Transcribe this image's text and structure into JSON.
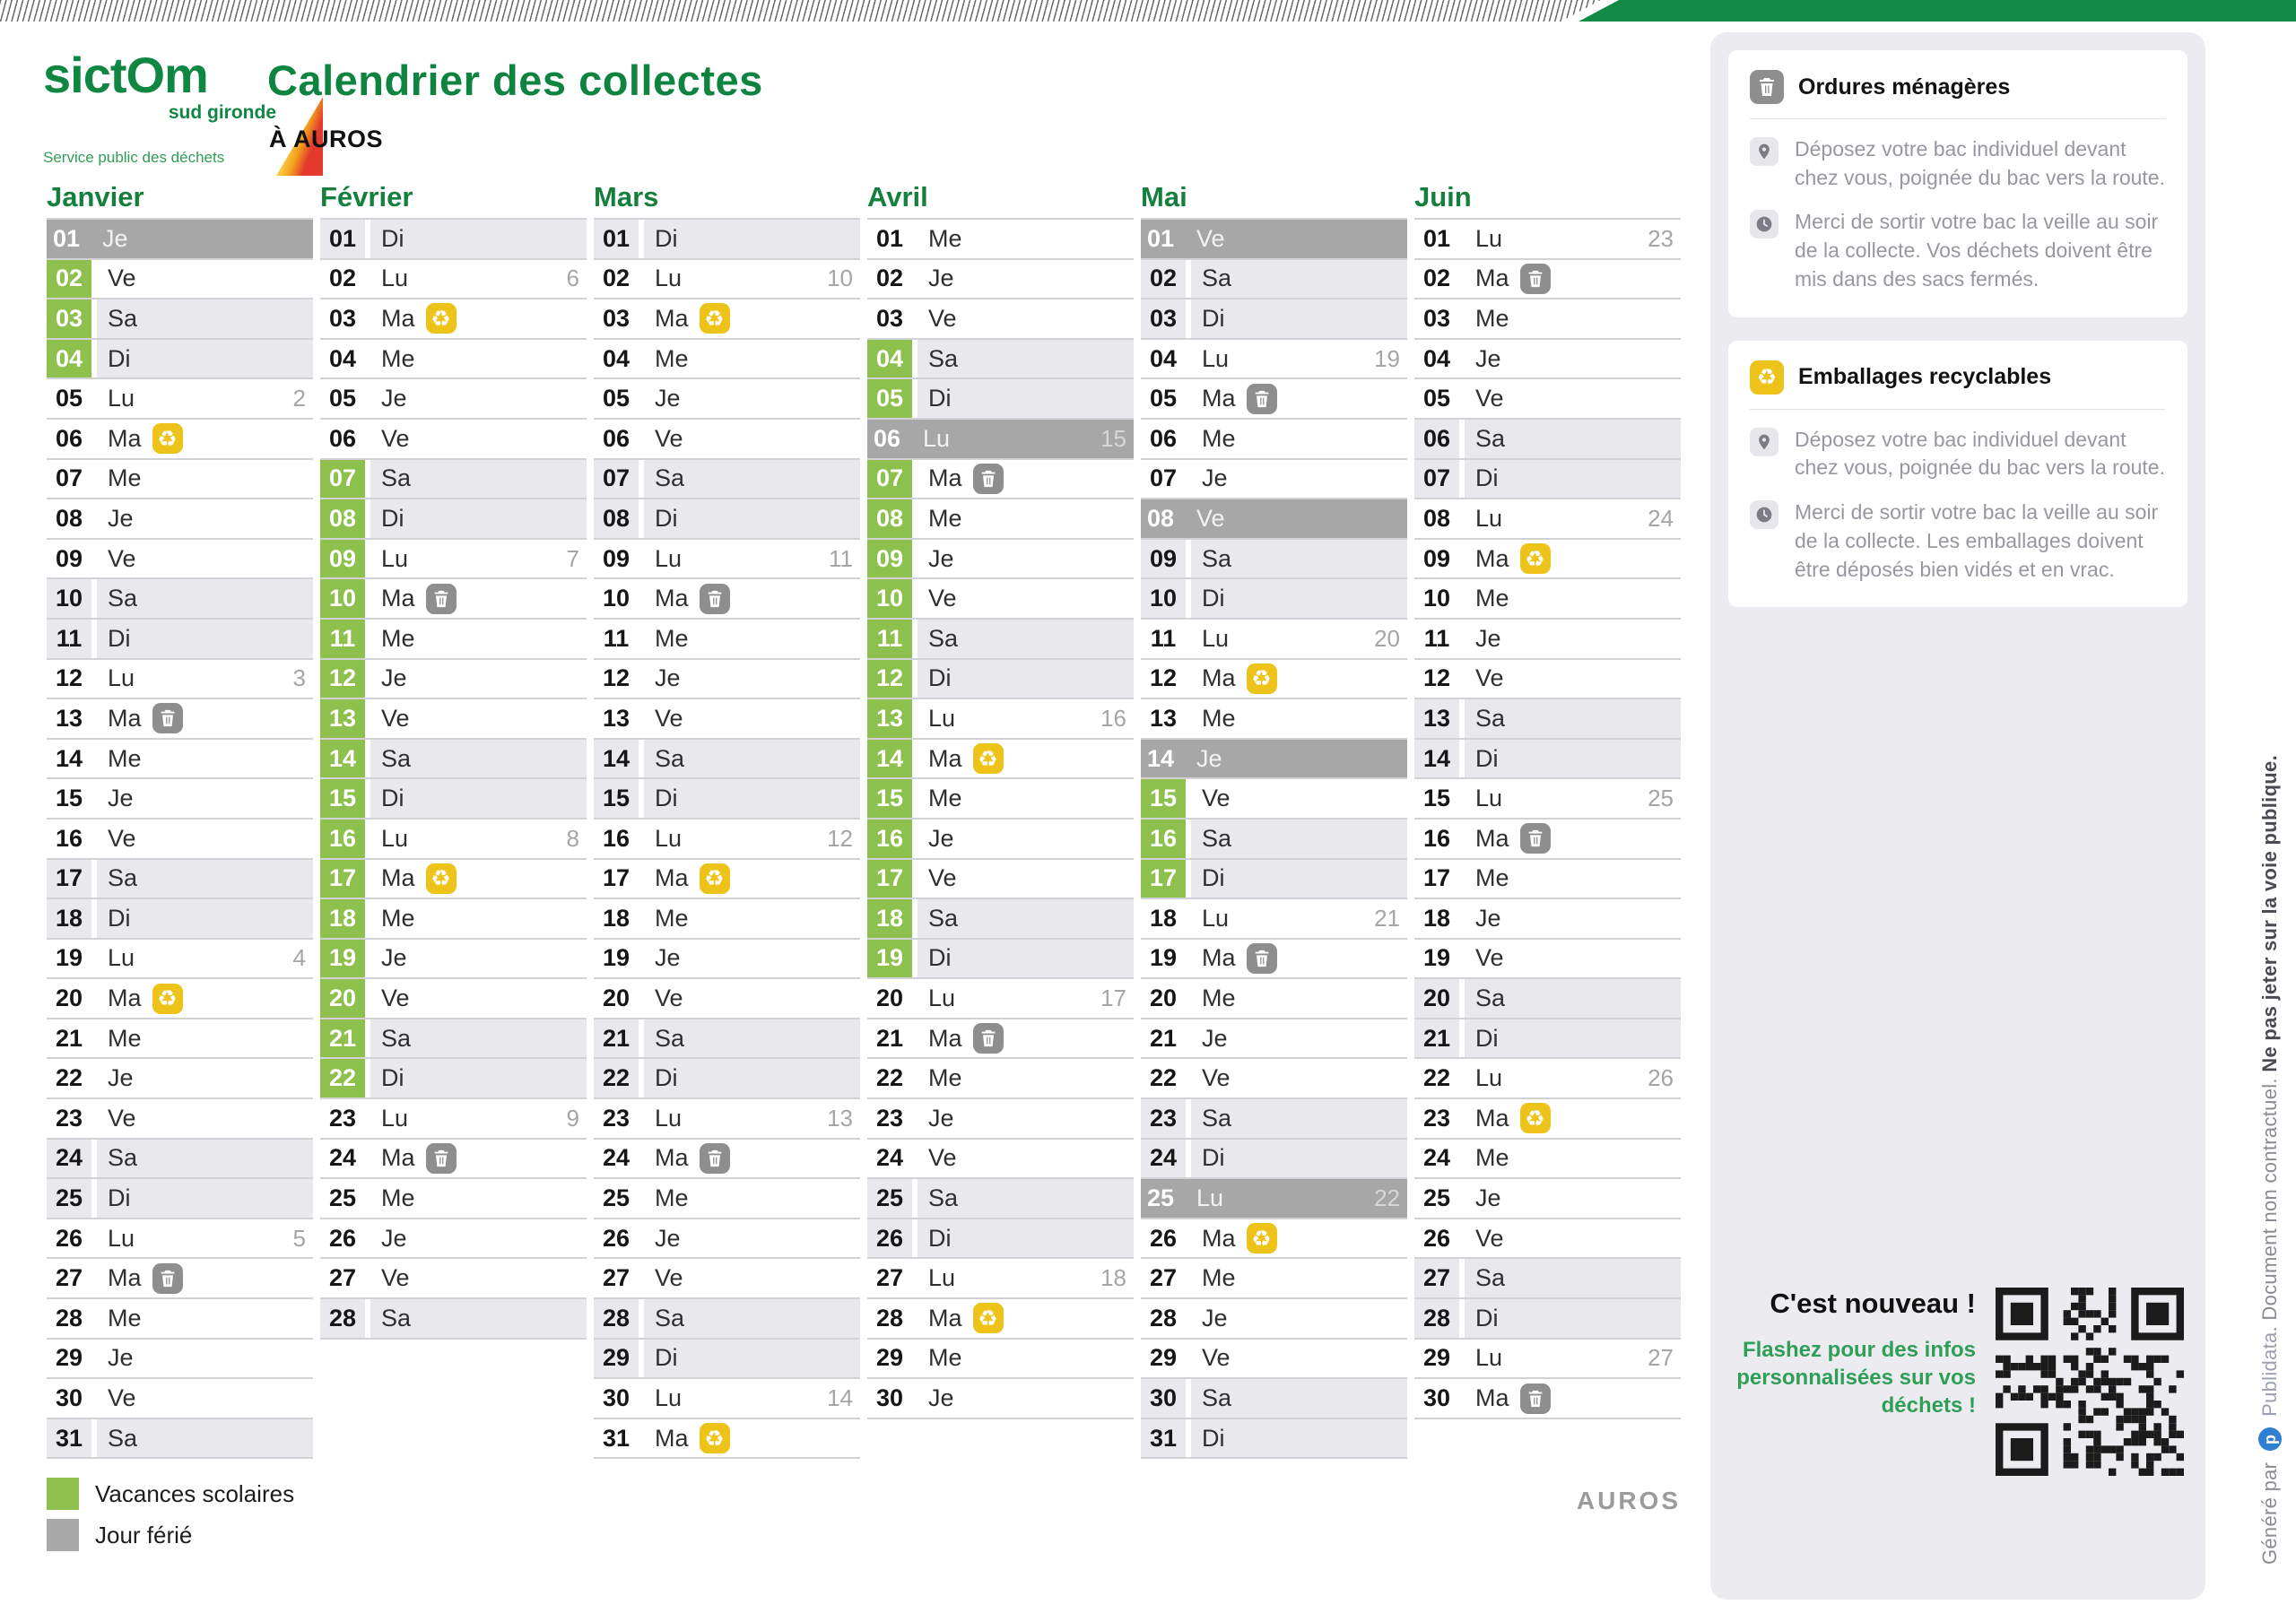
{
  "header": {
    "logo_line1": "sictOm",
    "logo_line2": "sud gironde",
    "logo_line3": "Service public des déchets",
    "title": "Calendrier des collectes",
    "subtitle": "À AUROS"
  },
  "colors": {
    "brand_green": "#0e8440",
    "vacances_green": "#8ec04e",
    "ferie_gray": "#a7a7a7",
    "recycle_yellow": "#eec319",
    "trash_gray": "#8e8e8e",
    "promo_green": "#2f9e56"
  },
  "legend": {
    "items": [
      {
        "label": "Vacances scolaires",
        "color": "#8ec04e"
      },
      {
        "label": "Jour férié",
        "color": "#a9a9a9"
      }
    ]
  },
  "footer_location": "AUROS",
  "promo": {
    "title": "C'est nouveau !",
    "text": "Flashez pour des infos personnalisées sur vos déchets !"
  },
  "side_note": {
    "prefix": "Généré par",
    "brand": "Publidata",
    "middle": ". Document non contractuel. ",
    "emphasis": "Ne pas jeter sur la voie publique."
  },
  "info_cards": [
    {
      "icon": "om",
      "title": "Ordures ménagères",
      "bullets": [
        {
          "icon": "pin",
          "text": "Déposez votre bac individuel devant chez vous, poignée du bac vers la route."
        },
        {
          "icon": "clock",
          "text": "Merci de sortir votre bac la veille au soir de la collecte. Vos déchets doivent être mis dans des sacs fermés."
        }
      ]
    },
    {
      "icon": "tri",
      "title": "Emballages recyclables",
      "bullets": [
        {
          "icon": "pin",
          "text": "Déposez votre bac individuel devant chez vous, poignée du bac vers la route."
        },
        {
          "icon": "clock",
          "text": "Merci de sortir votre bac la veille au soir de la collecte. Les emballages doivent être déposés bien vidés et en vrac."
        }
      ]
    }
  ],
  "calendar": {
    "icon_legend": {
      "om": "ordures-menageres-trash",
      "tri": "emballages-recyclables"
    },
    "months": [
      {
        "name": "Janvier",
        "days": [
          {
            "d": "01",
            "w": "Je",
            "t": "F"
          },
          {
            "d": "02",
            "w": "Ve",
            "t": "V"
          },
          {
            "d": "03",
            "w": "Sa",
            "t": "V"
          },
          {
            "d": "04",
            "w": "Di",
            "t": "V"
          },
          {
            "d": "05",
            "w": "Lu",
            "k": 2
          },
          {
            "d": "06",
            "w": "Ma",
            "i": "tri"
          },
          {
            "d": "07",
            "w": "Me"
          },
          {
            "d": "08",
            "w": "Je"
          },
          {
            "d": "09",
            "w": "Ve"
          },
          {
            "d": "10",
            "w": "Sa"
          },
          {
            "d": "11",
            "w": "Di"
          },
          {
            "d": "12",
            "w": "Lu",
            "k": 3
          },
          {
            "d": "13",
            "w": "Ma",
            "i": "om"
          },
          {
            "d": "14",
            "w": "Me"
          },
          {
            "d": "15",
            "w": "Je"
          },
          {
            "d": "16",
            "w": "Ve"
          },
          {
            "d": "17",
            "w": "Sa"
          },
          {
            "d": "18",
            "w": "Di"
          },
          {
            "d": "19",
            "w": "Lu",
            "k": 4
          },
          {
            "d": "20",
            "w": "Ma",
            "i": "tri"
          },
          {
            "d": "21",
            "w": "Me"
          },
          {
            "d": "22",
            "w": "Je"
          },
          {
            "d": "23",
            "w": "Ve"
          },
          {
            "d": "24",
            "w": "Sa"
          },
          {
            "d": "25",
            "w": "Di"
          },
          {
            "d": "26",
            "w": "Lu",
            "k": 5
          },
          {
            "d": "27",
            "w": "Ma",
            "i": "om"
          },
          {
            "d": "28",
            "w": "Me"
          },
          {
            "d": "29",
            "w": "Je"
          },
          {
            "d": "30",
            "w": "Ve"
          },
          {
            "d": "31",
            "w": "Sa"
          }
        ]
      },
      {
        "name": "Février",
        "days": [
          {
            "d": "01",
            "w": "Di"
          },
          {
            "d": "02",
            "w": "Lu",
            "k": 6
          },
          {
            "d": "03",
            "w": "Ma",
            "i": "tri"
          },
          {
            "d": "04",
            "w": "Me"
          },
          {
            "d": "05",
            "w": "Je"
          },
          {
            "d": "06",
            "w": "Ve"
          },
          {
            "d": "07",
            "w": "Sa",
            "t": "V"
          },
          {
            "d": "08",
            "w": "Di",
            "t": "V"
          },
          {
            "d": "09",
            "w": "Lu",
            "t": "V",
            "k": 7
          },
          {
            "d": "10",
            "w": "Ma",
            "t": "V",
            "i": "om"
          },
          {
            "d": "11",
            "w": "Me",
            "t": "V"
          },
          {
            "d": "12",
            "w": "Je",
            "t": "V"
          },
          {
            "d": "13",
            "w": "Ve",
            "t": "V"
          },
          {
            "d": "14",
            "w": "Sa",
            "t": "V"
          },
          {
            "d": "15",
            "w": "Di",
            "t": "V"
          },
          {
            "d": "16",
            "w": "Lu",
            "t": "V",
            "k": 8
          },
          {
            "d": "17",
            "w": "Ma",
            "t": "V",
            "i": "tri"
          },
          {
            "d": "18",
            "w": "Me",
            "t": "V"
          },
          {
            "d": "19",
            "w": "Je",
            "t": "V"
          },
          {
            "d": "20",
            "w": "Ve",
            "t": "V"
          },
          {
            "d": "21",
            "w": "Sa",
            "t": "V"
          },
          {
            "d": "22",
            "w": "Di",
            "t": "V"
          },
          {
            "d": "23",
            "w": "Lu",
            "k": 9
          },
          {
            "d": "24",
            "w": "Ma",
            "i": "om"
          },
          {
            "d": "25",
            "w": "Me"
          },
          {
            "d": "26",
            "w": "Je"
          },
          {
            "d": "27",
            "w": "Ve"
          },
          {
            "d": "28",
            "w": "Sa"
          }
        ]
      },
      {
        "name": "Mars",
        "days": [
          {
            "d": "01",
            "w": "Di"
          },
          {
            "d": "02",
            "w": "Lu",
            "k": 10
          },
          {
            "d": "03",
            "w": "Ma",
            "i": "tri"
          },
          {
            "d": "04",
            "w": "Me"
          },
          {
            "d": "05",
            "w": "Je"
          },
          {
            "d": "06",
            "w": "Ve"
          },
          {
            "d": "07",
            "w": "Sa"
          },
          {
            "d": "08",
            "w": "Di"
          },
          {
            "d": "09",
            "w": "Lu",
            "k": 11
          },
          {
            "d": "10",
            "w": "Ma",
            "i": "om"
          },
          {
            "d": "11",
            "w": "Me"
          },
          {
            "d": "12",
            "w": "Je"
          },
          {
            "d": "13",
            "w": "Ve"
          },
          {
            "d": "14",
            "w": "Sa"
          },
          {
            "d": "15",
            "w": "Di"
          },
          {
            "d": "16",
            "w": "Lu",
            "k": 12
          },
          {
            "d": "17",
            "w": "Ma",
            "i": "tri"
          },
          {
            "d": "18",
            "w": "Me"
          },
          {
            "d": "19",
            "w": "Je"
          },
          {
            "d": "20",
            "w": "Ve"
          },
          {
            "d": "21",
            "w": "Sa"
          },
          {
            "d": "22",
            "w": "Di"
          },
          {
            "d": "23",
            "w": "Lu",
            "k": 13
          },
          {
            "d": "24",
            "w": "Ma",
            "i": "om"
          },
          {
            "d": "25",
            "w": "Me"
          },
          {
            "d": "26",
            "w": "Je"
          },
          {
            "d": "27",
            "w": "Ve"
          },
          {
            "d": "28",
            "w": "Sa"
          },
          {
            "d": "29",
            "w": "Di"
          },
          {
            "d": "30",
            "w": "Lu",
            "k": 14
          },
          {
            "d": "31",
            "w": "Ma",
            "i": "tri"
          }
        ]
      },
      {
        "name": "Avril",
        "days": [
          {
            "d": "01",
            "w": "Me"
          },
          {
            "d": "02",
            "w": "Je"
          },
          {
            "d": "03",
            "w": "Ve"
          },
          {
            "d": "04",
            "w": "Sa",
            "t": "V"
          },
          {
            "d": "05",
            "w": "Di",
            "t": "V"
          },
          {
            "d": "06",
            "w": "Lu",
            "t": "F",
            "k": 15
          },
          {
            "d": "07",
            "w": "Ma",
            "t": "V",
            "i": "om"
          },
          {
            "d": "08",
            "w": "Me",
            "t": "V"
          },
          {
            "d": "09",
            "w": "Je",
            "t": "V"
          },
          {
            "d": "10",
            "w": "Ve",
            "t": "V"
          },
          {
            "d": "11",
            "w": "Sa",
            "t": "V"
          },
          {
            "d": "12",
            "w": "Di",
            "t": "V"
          },
          {
            "d": "13",
            "w": "Lu",
            "t": "V",
            "k": 16
          },
          {
            "d": "14",
            "w": "Ma",
            "t": "V",
            "i": "tri"
          },
          {
            "d": "15",
            "w": "Me",
            "t": "V"
          },
          {
            "d": "16",
            "w": "Je",
            "t": "V"
          },
          {
            "d": "17",
            "w": "Ve",
            "t": "V"
          },
          {
            "d": "18",
            "w": "Sa",
            "t": "V"
          },
          {
            "d": "19",
            "w": "Di",
            "t": "V"
          },
          {
            "d": "20",
            "w": "Lu",
            "k": 17
          },
          {
            "d": "21",
            "w": "Ma",
            "i": "om"
          },
          {
            "d": "22",
            "w": "Me"
          },
          {
            "d": "23",
            "w": "Je"
          },
          {
            "d": "24",
            "w": "Ve"
          },
          {
            "d": "25",
            "w": "Sa"
          },
          {
            "d": "26",
            "w": "Di"
          },
          {
            "d": "27",
            "w": "Lu",
            "k": 18
          },
          {
            "d": "28",
            "w": "Ma",
            "i": "tri"
          },
          {
            "d": "29",
            "w": "Me"
          },
          {
            "d": "30",
            "w": "Je"
          }
        ]
      },
      {
        "name": "Mai",
        "days": [
          {
            "d": "01",
            "w": "Ve",
            "t": "F"
          },
          {
            "d": "02",
            "w": "Sa"
          },
          {
            "d": "03",
            "w": "Di"
          },
          {
            "d": "04",
            "w": "Lu",
            "k": 19
          },
          {
            "d": "05",
            "w": "Ma",
            "i": "om"
          },
          {
            "d": "06",
            "w": "Me"
          },
          {
            "d": "07",
            "w": "Je"
          },
          {
            "d": "08",
            "w": "Ve",
            "t": "F"
          },
          {
            "d": "09",
            "w": "Sa"
          },
          {
            "d": "10",
            "w": "Di"
          },
          {
            "d": "11",
            "w": "Lu",
            "k": 20
          },
          {
            "d": "12",
            "w": "Ma",
            "i": "tri"
          },
          {
            "d": "13",
            "w": "Me"
          },
          {
            "d": "14",
            "w": "Je",
            "t": "F"
          },
          {
            "d": "15",
            "w": "Ve",
            "t": "V"
          },
          {
            "d": "16",
            "w": "Sa",
            "t": "V"
          },
          {
            "d": "17",
            "w": "Di",
            "t": "V"
          },
          {
            "d": "18",
            "w": "Lu",
            "k": 21
          },
          {
            "d": "19",
            "w": "Ma",
            "i": "om"
          },
          {
            "d": "20",
            "w": "Me"
          },
          {
            "d": "21",
            "w": "Je"
          },
          {
            "d": "22",
            "w": "Ve"
          },
          {
            "d": "23",
            "w": "Sa"
          },
          {
            "d": "24",
            "w": "Di"
          },
          {
            "d": "25",
            "w": "Lu",
            "t": "F",
            "k": 22
          },
          {
            "d": "26",
            "w": "Ma",
            "i": "tri"
          },
          {
            "d": "27",
            "w": "Me"
          },
          {
            "d": "28",
            "w": "Je"
          },
          {
            "d": "29",
            "w": "Ve"
          },
          {
            "d": "30",
            "w": "Sa"
          },
          {
            "d": "31",
            "w": "Di"
          }
        ]
      },
      {
        "name": "Juin",
        "days": [
          {
            "d": "01",
            "w": "Lu",
            "k": 23
          },
          {
            "d": "02",
            "w": "Ma",
            "i": "om"
          },
          {
            "d": "03",
            "w": "Me"
          },
          {
            "d": "04",
            "w": "Je"
          },
          {
            "d": "05",
            "w": "Ve"
          },
          {
            "d": "06",
            "w": "Sa"
          },
          {
            "d": "07",
            "w": "Di"
          },
          {
            "d": "08",
            "w": "Lu",
            "k": 24
          },
          {
            "d": "09",
            "w": "Ma",
            "i": "tri"
          },
          {
            "d": "10",
            "w": "Me"
          },
          {
            "d": "11",
            "w": "Je"
          },
          {
            "d": "12",
            "w": "Ve"
          },
          {
            "d": "13",
            "w": "Sa"
          },
          {
            "d": "14",
            "w": "Di"
          },
          {
            "d": "15",
            "w": "Lu",
            "k": 25
          },
          {
            "d": "16",
            "w": "Ma",
            "i": "om"
          },
          {
            "d": "17",
            "w": "Me"
          },
          {
            "d": "18",
            "w": "Je"
          },
          {
            "d": "19",
            "w": "Ve"
          },
          {
            "d": "20",
            "w": "Sa"
          },
          {
            "d": "21",
            "w": "Di"
          },
          {
            "d": "22",
            "w": "Lu",
            "k": 26
          },
          {
            "d": "23",
            "w": "Ma",
            "i": "tri"
          },
          {
            "d": "24",
            "w": "Me"
          },
          {
            "d": "25",
            "w": "Je"
          },
          {
            "d": "26",
            "w": "Ve"
          },
          {
            "d": "27",
            "w": "Sa"
          },
          {
            "d": "28",
            "w": "Di"
          },
          {
            "d": "29",
            "w": "Lu",
            "k": 27
          },
          {
            "d": "30",
            "w": "Ma",
            "i": "om"
          }
        ]
      }
    ]
  }
}
